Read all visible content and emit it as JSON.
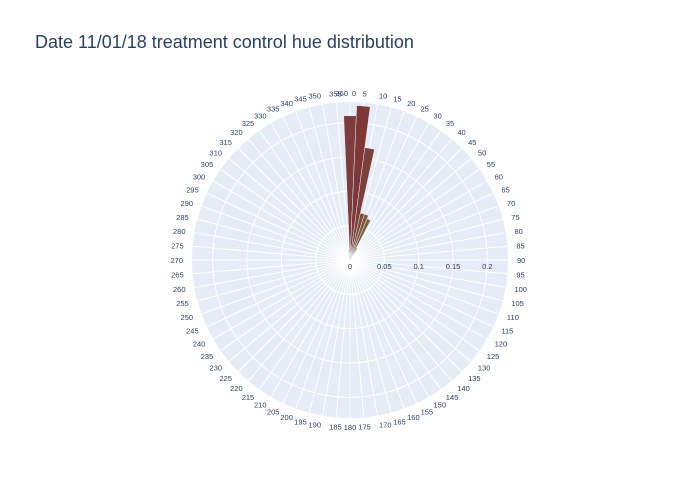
{
  "chart_data": {
    "type": "barpolar",
    "title": "Date 11/01/18 treatment control hue distribution",
    "angular_axis": {
      "direction": "clockwise",
      "rotation": 90,
      "tick_labels": [
        "0",
        "5",
        "10",
        "15",
        "20",
        "25",
        "30",
        "35",
        "40",
        "45",
        "50",
        "55",
        "60",
        "65",
        "70",
        "75",
        "80",
        "85",
        "90",
        "95",
        "100",
        "105",
        "110",
        "115",
        "120",
        "125",
        "130",
        "135",
        "140",
        "145",
        "150",
        "155",
        "160",
        "165",
        "170",
        "175",
        "180",
        "185",
        "190",
        "195",
        "200",
        "205",
        "210",
        "215",
        "220",
        "225",
        "230",
        "235",
        "240",
        "245",
        "250",
        "255",
        "260",
        "265",
        "270",
        "275",
        "280",
        "285",
        "290",
        "295",
        "300",
        "305",
        "310",
        "315",
        "320",
        "325",
        "330",
        "335",
        "340",
        "345",
        "350",
        "355",
        "360"
      ]
    },
    "radial_axis": {
      "range": [
        0,
        0.23
      ],
      "tick_values": [
        0,
        0.05,
        0.1,
        0.15,
        0.2
      ],
      "tick_labels": [
        "0",
        "0.05",
        "0.1",
        "0.15",
        "0.2"
      ]
    },
    "grid": true,
    "bars": [
      {
        "theta": 0,
        "r": 0.21,
        "color": "#7d3d3d"
      },
      {
        "theta": 5,
        "r": 0.225,
        "color": "#7d3737"
      },
      {
        "theta": 10,
        "r": 0.165,
        "color": "#7d3f3a"
      },
      {
        "theta": 15,
        "r": 0.07,
        "color": "#7d4a3b"
      },
      {
        "theta": 20,
        "r": 0.07,
        "color": "#7d5a3e"
      },
      {
        "theta": 25,
        "r": 0.065,
        "color": "#7d623e"
      },
      {
        "theta": 30,
        "r": 0.02,
        "color": "#7d6c44"
      },
      {
        "theta": 355,
        "r": 0.015,
        "color": "#7d6a75"
      },
      {
        "theta": 350,
        "r": 0.01,
        "color": "#8a7a8a"
      }
    ],
    "colors": {
      "plot_background": "#e5ecf6",
      "gridline": "#ffffff",
      "text": "#2a3f5f"
    }
  }
}
